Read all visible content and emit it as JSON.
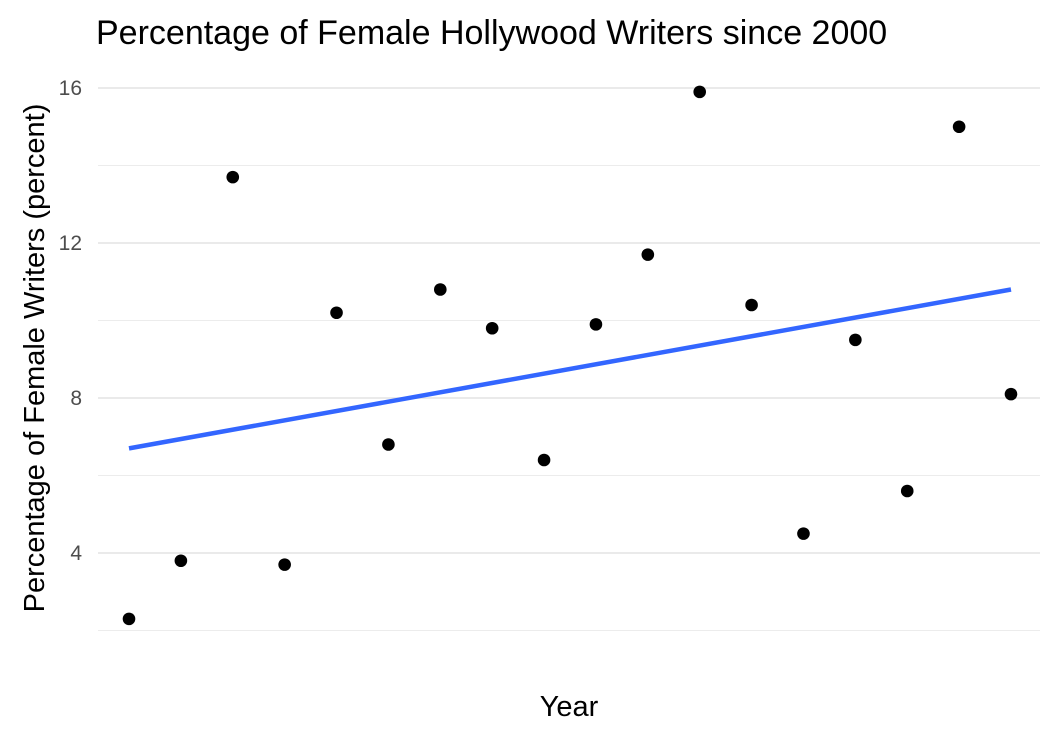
{
  "chart_data": {
    "type": "scatter",
    "title": "Percentage of Female Hollywood Writers since 2000",
    "xlabel": "Year",
    "ylabel": "Percentage of Female Writers (percent)",
    "ylim": [
      1.6,
      16.4
    ],
    "yticks": [
      4,
      8,
      12,
      16
    ],
    "ytick_labels": [
      "4",
      "8",
      "12",
      "16"
    ],
    "xlim": [
      2000,
      2017
    ],
    "x_tick_labels_shown": false,
    "grid": true,
    "legend": "none",
    "points": [
      {
        "x": 2000,
        "y": 2.3
      },
      {
        "x": 2001,
        "y": 3.8
      },
      {
        "x": 2002,
        "y": 13.7
      },
      {
        "x": 2003,
        "y": 3.7
      },
      {
        "x": 2004,
        "y": 10.2
      },
      {
        "x": 2005,
        "y": 6.8
      },
      {
        "x": 2006,
        "y": 10.8
      },
      {
        "x": 2007,
        "y": 9.8
      },
      {
        "x": 2008,
        "y": 6.4
      },
      {
        "x": 2009,
        "y": 9.9
      },
      {
        "x": 2010,
        "y": 11.7
      },
      {
        "x": 2011,
        "y": 15.9
      },
      {
        "x": 2012,
        "y": 10.4
      },
      {
        "x": 2013,
        "y": 4.5
      },
      {
        "x": 2014,
        "y": 9.5
      },
      {
        "x": 2015,
        "y": 5.6
      },
      {
        "x": 2016,
        "y": 15.0
      },
      {
        "x": 2017,
        "y": 8.1
      }
    ],
    "trend_line": {
      "type": "linear",
      "x": [
        2000,
        2017
      ],
      "y": [
        6.7,
        10.8
      ]
    },
    "colors": {
      "points": "#000000",
      "trend_line": "#3366ff",
      "grid": "#e3e3e3"
    }
  }
}
